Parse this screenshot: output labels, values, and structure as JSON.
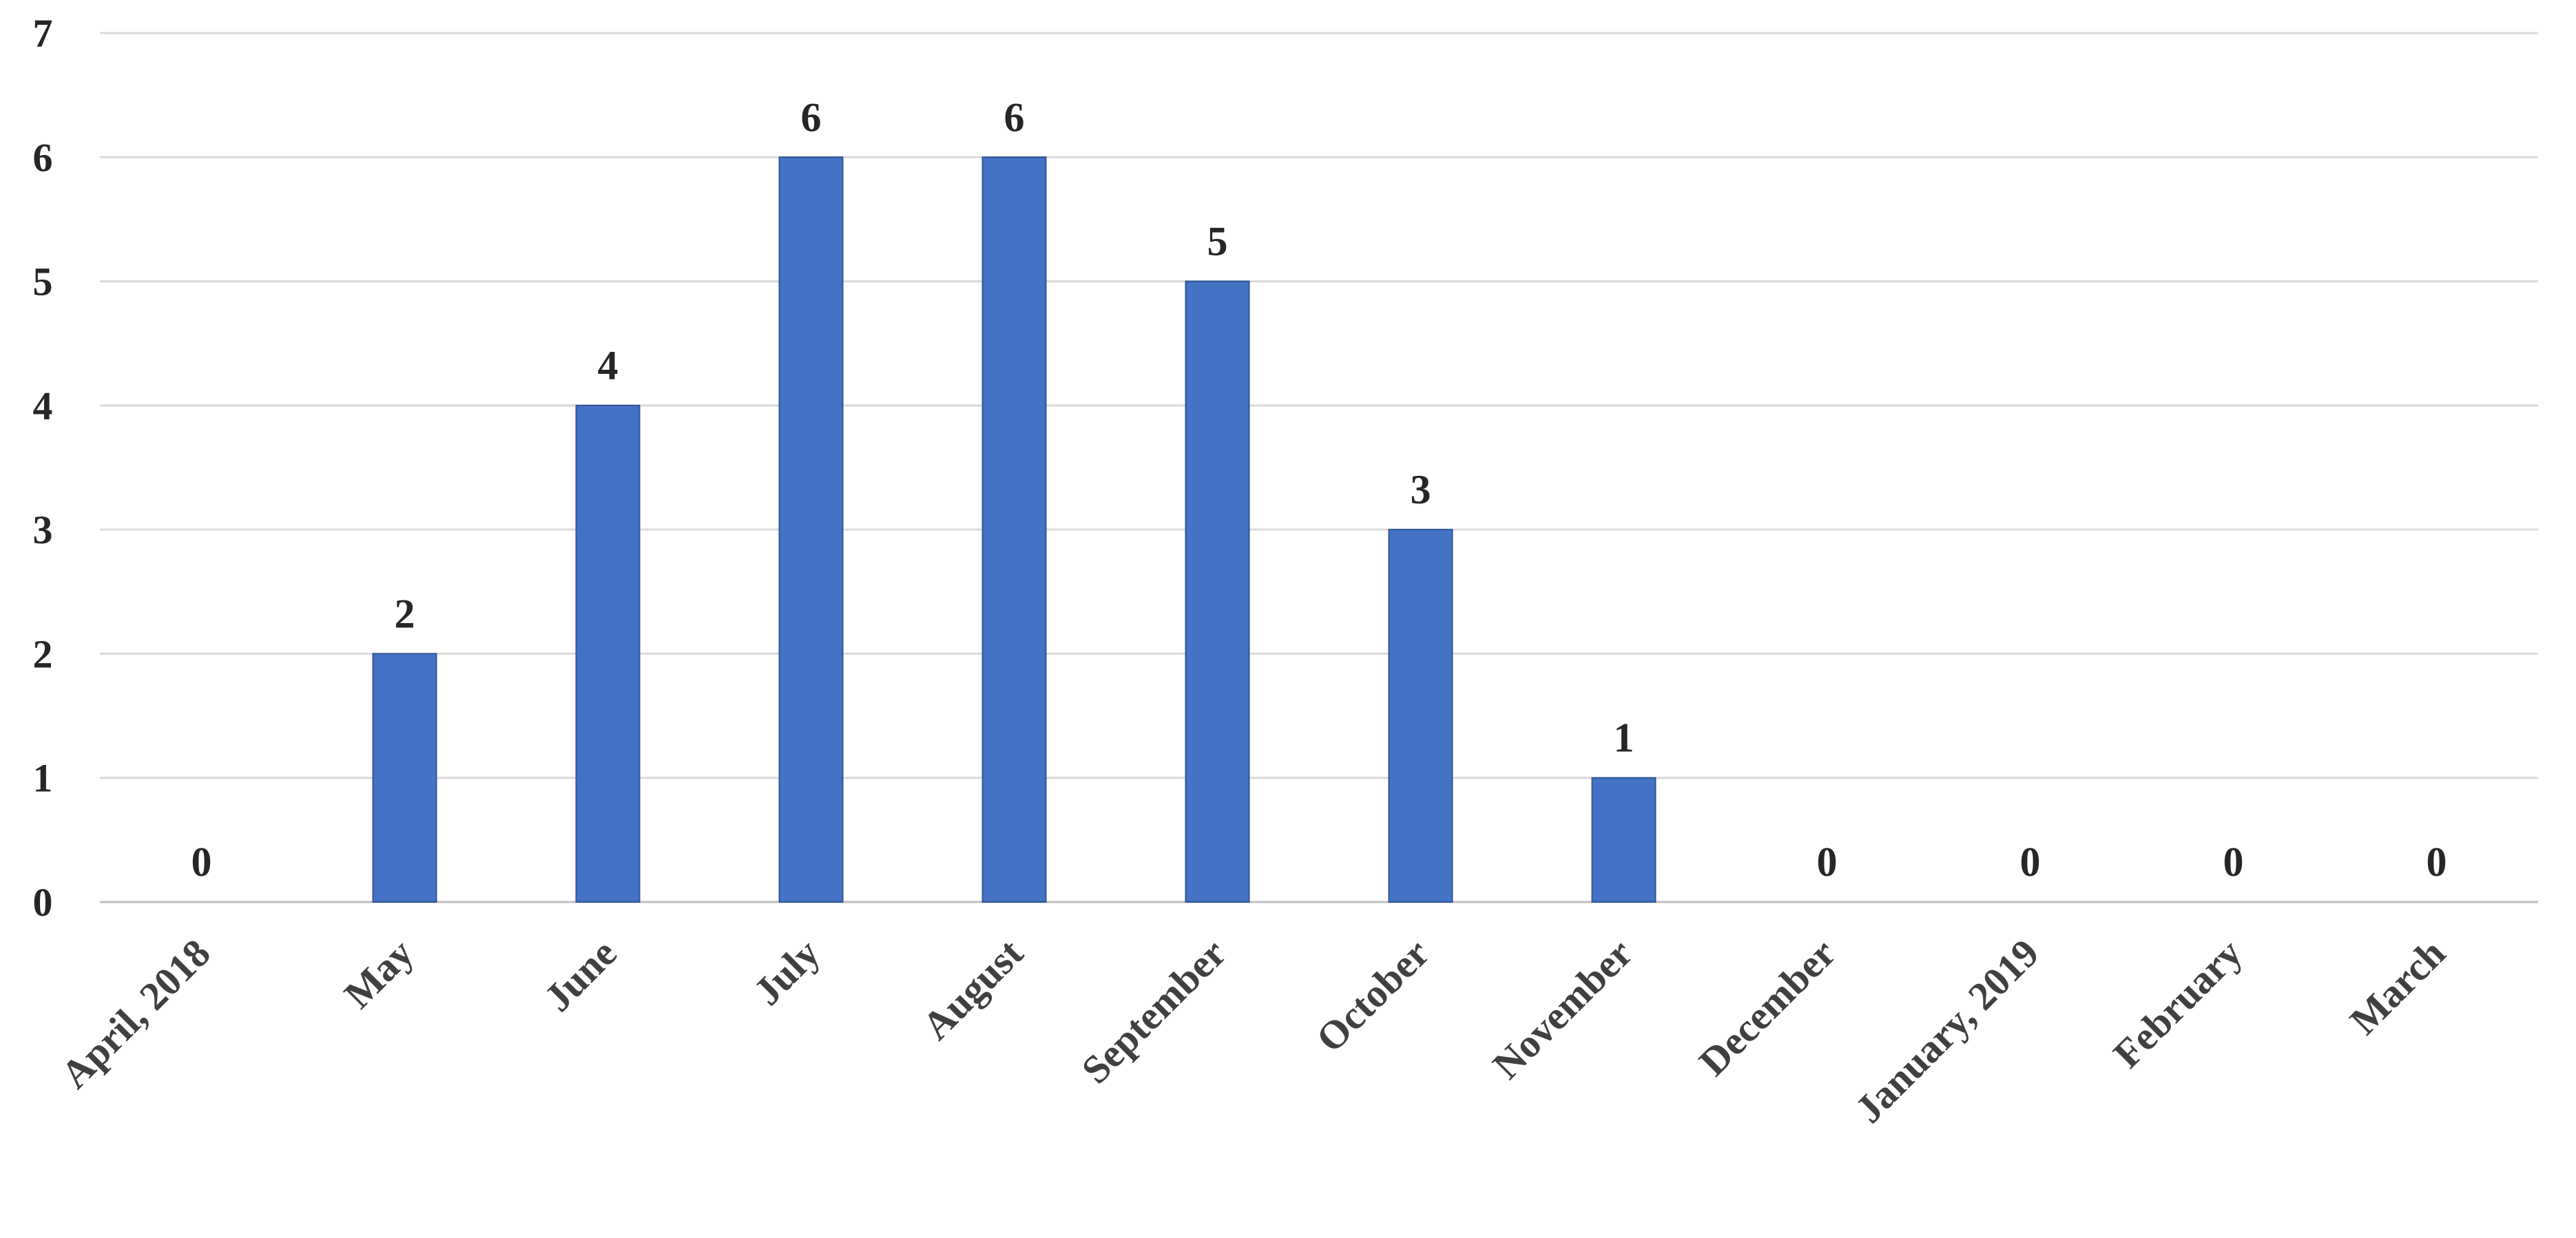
{
  "chart_data": {
    "type": "bar",
    "title": "",
    "xlabel": "",
    "ylabel": "",
    "categories": [
      "April, 2018",
      "May",
      "June",
      "July",
      "August",
      "September",
      "October",
      "November",
      "December",
      "January, 2019",
      "February",
      "March"
    ],
    "values": [
      0,
      2,
      4,
      6,
      6,
      5,
      3,
      1,
      0,
      0,
      0,
      0
    ],
    "ylim": [
      0,
      7
    ],
    "yticks": [
      0,
      1,
      2,
      3,
      4,
      5,
      6,
      7
    ],
    "grid": true,
    "legend": "none",
    "data_labels": true,
    "bar_color": "#4472c4",
    "bar_edge_color": "#2f5597",
    "text_color": "#262626",
    "grid_color": "#d9d9d9"
  }
}
